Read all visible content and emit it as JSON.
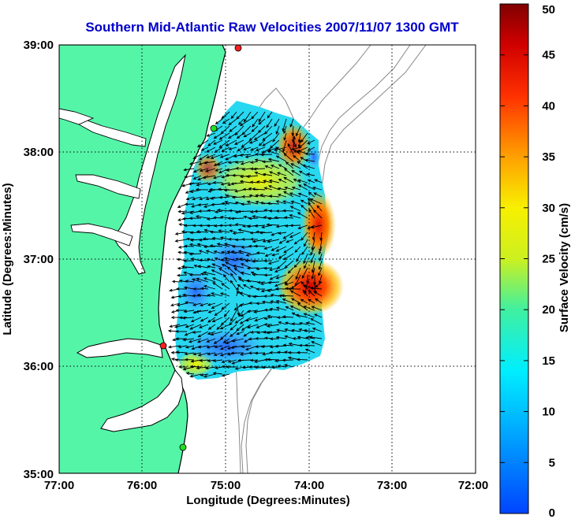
{
  "chart_data": {
    "type": "heatmap",
    "title": "Southern Mid-Atlantic Raw Velocities 2007/11/07 1300 GMT",
    "xlabel": "Longitude (Degrees:Minutes)",
    "ylabel": "Latitude (Degrees:Minutes)",
    "x_ticks": [
      "77:00",
      "76:00",
      "75:00",
      "74:00",
      "73:00",
      "72:00"
    ],
    "y_ticks": [
      "39:00",
      "38:00",
      "37:00",
      "36:00",
      "35:00"
    ],
    "xlim": [
      -77,
      -72
    ],
    "ylim": [
      35,
      39
    ],
    "grid": true,
    "colorbar": {
      "label": "Surface Velocity (cm/s)",
      "ticks": [
        "0",
        "5",
        "10",
        "15",
        "20",
        "25",
        "30",
        "35",
        "40",
        "45",
        "50"
      ],
      "range": [
        0,
        50
      ]
    },
    "colors": {
      "land": "#55f5a8",
      "water": "#ffffff",
      "coast": "#000000",
      "bathymetry": "#888888",
      "site_marker": "#ff2020",
      "site_marker_alt": "#22dd22"
    },
    "velocity_hotspots": [
      {
        "lon": -74.1,
        "lat": 36.75,
        "speed": 46
      },
      {
        "lon": -73.9,
        "lat": 37.35,
        "speed": 44
      },
      {
        "lon": -74.3,
        "lat": 38.1,
        "speed": 38
      },
      {
        "lon": -75.2,
        "lat": 36.2,
        "speed": 8
      },
      {
        "lon": -75.0,
        "lat": 36.7,
        "speed": 9
      }
    ]
  }
}
